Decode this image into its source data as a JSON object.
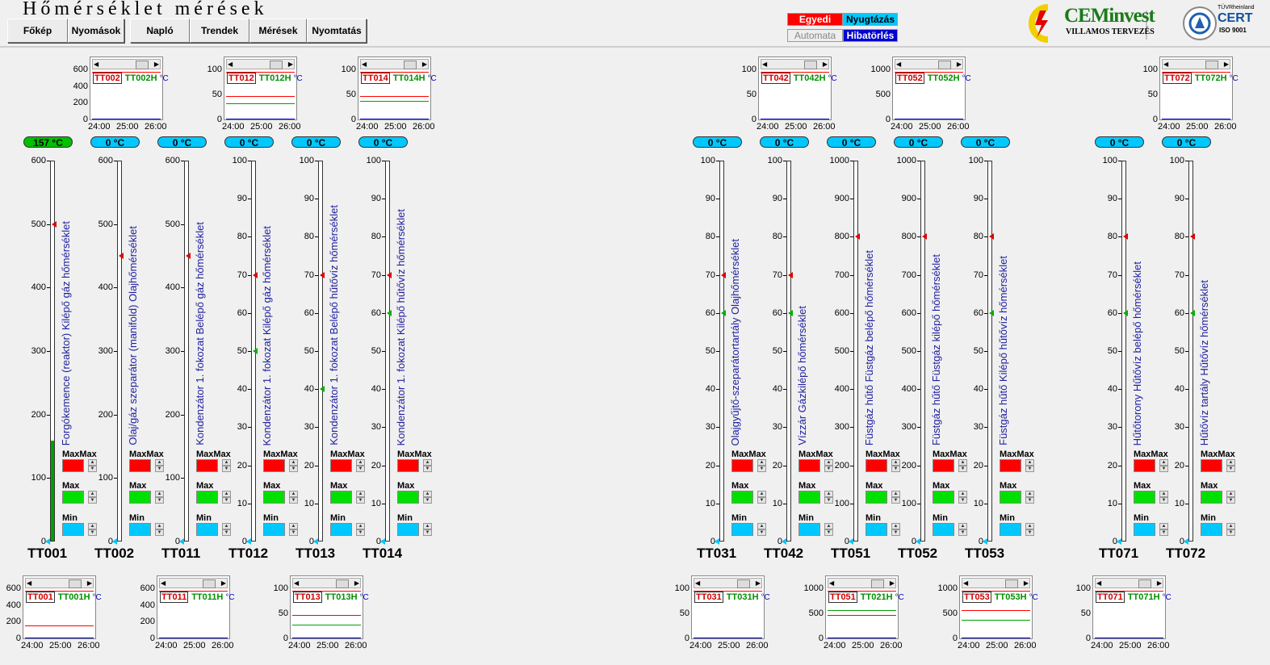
{
  "title": "Hőmérséklet mérések",
  "nav": [
    {
      "label": "Főkép"
    },
    {
      "label": "Nyomások"
    },
    {
      "label": "Napló"
    },
    {
      "label": "Trendek"
    },
    {
      "label": "Mérések"
    },
    {
      "label": "Nyomtatás"
    }
  ],
  "controls": {
    "egyedi": "Egyedi",
    "nyugtazas": "Nyugtázás",
    "automata": "Automata",
    "hibatorles": "Hibatörlés"
  },
  "logo": {
    "brand": "CEMinvest",
    "sub": "VILLAMOS TERVEZÉS",
    "cert": "CERT",
    "tuv": "TÜVRheinland",
    "iso": "ISO 9001"
  },
  "colors": {
    "max_alarm": "#ff0000",
    "max_warn": "#00e000",
    "min": "#00c8ff",
    "pill_active": "#00c000",
    "pill_idle": "#00c8ff",
    "label": "#2020a0"
  },
  "limit_labels": {
    "maxmax": "MaxMax",
    "max": "Max",
    "min": "Min"
  },
  "unit": "°C",
  "trends": [
    {
      "id": "TT002",
      "hid": "TT002H",
      "axis": [
        "600",
        "400",
        "200",
        "0"
      ],
      "ticks": [
        "24:00",
        "25:00",
        "26:00"
      ]
    },
    {
      "id": "TT012",
      "hid": "TT012H",
      "axis": [
        "100",
        "50",
        "0"
      ],
      "ticks": [
        "24:00",
        "25:00",
        "26:00"
      ]
    },
    {
      "id": "TT014",
      "hid": "TT014H",
      "axis": [
        "100",
        "50",
        "0"
      ],
      "ticks": [
        "24:00",
        "25:00",
        "26:00"
      ]
    },
    {
      "id": "TT042",
      "hid": "TT042H",
      "axis": [
        "100",
        "50",
        "0"
      ],
      "ticks": [
        "24:00",
        "25:00",
        "26:00"
      ]
    },
    {
      "id": "TT052",
      "hid": "TT052H",
      "axis": [
        "1000",
        "500",
        "0"
      ],
      "ticks": [
        "24:00",
        "25:00",
        "26:00"
      ]
    },
    {
      "id": "TT072",
      "hid": "TT072H",
      "axis": [
        "100",
        "50",
        "0"
      ],
      "ticks": [
        "24:00",
        "25:00",
        "26:00"
      ]
    },
    {
      "id": "TT001",
      "hid": "TT001H",
      "axis": [
        "600",
        "400",
        "200",
        "0"
      ],
      "ticks": [
        "24:00",
        "25:00",
        "26:00"
      ]
    },
    {
      "id": "TT011",
      "hid": "TT011H",
      "axis": [
        "600",
        "400",
        "200",
        "0"
      ],
      "ticks": [
        "24:00",
        "25:00",
        "26:00"
      ]
    },
    {
      "id": "TT013",
      "hid": "TT013H",
      "axis": [
        "100",
        "50",
        "0"
      ],
      "ticks": [
        "24:00",
        "25:00",
        "26:00"
      ]
    },
    {
      "id": "TT031",
      "hid": "TT031H",
      "axis": [
        "100",
        "50",
        "0"
      ],
      "ticks": [
        "24:00",
        "25:00",
        "26:00"
      ]
    },
    {
      "id": "TT051",
      "hid": "TT021H",
      "axis": [
        "1000",
        "500",
        "0"
      ],
      "ticks": [
        "24:00",
        "25:00",
        "26:00"
      ]
    },
    {
      "id": "TT053",
      "hid": "TT053H",
      "axis": [
        "1000",
        "500",
        "0"
      ],
      "ticks": [
        "24:00",
        "25:00",
        "26:00"
      ]
    },
    {
      "id": "TT071",
      "hid": "TT071H",
      "axis": [
        "100",
        "50",
        "0"
      ],
      "ticks": [
        "24:00",
        "25:00",
        "26:00"
      ]
    }
  ],
  "sensors": [
    {
      "tag": "TT001",
      "value": "157 °C",
      "fill": 0.262,
      "desc": "Forgókemence (reaktor) Kilépő gáz hőmérséklet",
      "scale": [
        "600",
        "500",
        "400",
        "300",
        "200",
        "100",
        "0"
      ],
      "maxmax": 0.833,
      "max": null
    },
    {
      "tag": "TT002",
      "value": "0 °C",
      "fill": 0,
      "desc": "Olaj/gáz szeparátor (manifold) Olajhőmérséklet",
      "scale": [
        "600",
        "500",
        "400",
        "300",
        "200",
        "100",
        "0"
      ],
      "maxmax": 0.75,
      "max": null
    },
    {
      "tag": "TT011",
      "value": "0 °C",
      "fill": 0,
      "desc": "Kondenzátor 1. fokozat Belépő gáz hőmérséklet",
      "scale": [
        "600",
        "500",
        "400",
        "300",
        "200",
        "100",
        "0"
      ],
      "maxmax": 0.75,
      "max": null
    },
    {
      "tag": "TT012",
      "value": "0 °C",
      "fill": 0,
      "desc": "Kondenzátor 1. fokozat Kilépő gáz  hőmérséklet",
      "scale": [
        "100",
        "90",
        "80",
        "70",
        "60",
        "50",
        "40",
        "30",
        "20",
        "10",
        "0"
      ],
      "maxmax": 0.7,
      "max": 0.5
    },
    {
      "tag": "TT013",
      "value": "0 °C",
      "fill": 0,
      "desc": "Kondenzátor 1. fokozat Belépő hűtővíz hőmérséklet",
      "scale": [
        "100",
        "90",
        "80",
        "70",
        "60",
        "50",
        "40",
        "30",
        "20",
        "10",
        "0"
      ],
      "maxmax": 0.7,
      "max": 0.4
    },
    {
      "tag": "TT014",
      "value": "0 °C",
      "fill": 0,
      "desc": "Kondenzátor 1. fokozat Kilépő hűtővíz hőmérséklet",
      "scale": [
        "100",
        "90",
        "80",
        "70",
        "60",
        "50",
        "40",
        "30",
        "20",
        "10",
        "0"
      ],
      "maxmax": 0.7,
      "max": 0.6
    },
    {
      "tag": "TT031",
      "value": "0 °C",
      "fill": 0,
      "desc": "Olajgyűjtő-szeparátortartály Olajhőmérséklet",
      "scale": [
        "100",
        "90",
        "80",
        "70",
        "60",
        "50",
        "40",
        "30",
        "20",
        "10",
        "0"
      ],
      "maxmax": 0.7,
      "max": 0.6
    },
    {
      "tag": "TT042",
      "value": "0 °C",
      "fill": 0,
      "desc": "Vízzár Gázkilépő hőmérséklet",
      "scale": [
        "100",
        "90",
        "80",
        "70",
        "60",
        "50",
        "40",
        "30",
        "20",
        "10",
        "0"
      ],
      "maxmax": 0.7,
      "max": 0.6
    },
    {
      "tag": "TT051",
      "value": "0 °C",
      "fill": 0,
      "desc": "Füstgáz hűtő Füstgáz belépő hőmérséklet",
      "scale": [
        "1000",
        "900",
        "800",
        "700",
        "600",
        "500",
        "400",
        "300",
        "200",
        "100",
        "0"
      ],
      "maxmax": 0.8,
      "max": null
    },
    {
      "tag": "TT052",
      "value": "0 °C",
      "fill": 0,
      "desc": "Füstgáz hűtő Füstgáz kilépő hőmérséklet",
      "scale": [
        "1000",
        "900",
        "800",
        "700",
        "600",
        "500",
        "400",
        "300",
        "200",
        "100",
        "0"
      ],
      "maxmax": 0.8,
      "max": null
    },
    {
      "tag": "TT053",
      "value": "0 °C",
      "fill": 0,
      "desc": "Füstgáz hűtő Kilépő hűtővíz hőmérséklet",
      "scale": [
        "100",
        "90",
        "80",
        "70",
        "60",
        "50",
        "40",
        "30",
        "20",
        "10",
        "0"
      ],
      "maxmax": 0.8,
      "max": 0.6
    },
    {
      "tag": "TT071",
      "value": "0 °C",
      "fill": 0,
      "desc": "Hűtőtorony  Hűtővíz belépő hőmérséklet",
      "scale": [
        "100",
        "90",
        "80",
        "70",
        "60",
        "50",
        "40",
        "30",
        "20",
        "10",
        "0"
      ],
      "maxmax": 0.8,
      "max": 0.6
    },
    {
      "tag": "TT072",
      "value": "0 °C",
      "fill": 0,
      "desc": "Hűtővíz tartály Hűtővíz hőmérséklet",
      "scale": [
        "100",
        "90",
        "80",
        "70",
        "60",
        "50",
        "40",
        "30",
        "20",
        "10",
        "0"
      ],
      "maxmax": 0.8,
      "max": 0.6
    }
  ]
}
